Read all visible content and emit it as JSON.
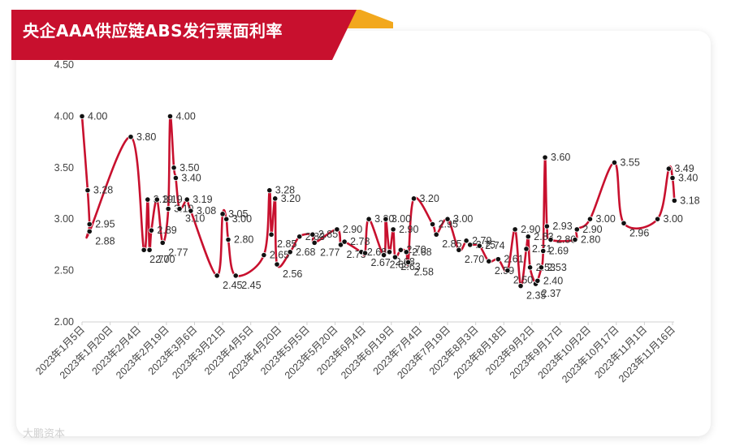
{
  "header": {
    "title": "央企AAA供应链ABS发行票面利率",
    "banner_color": "#c8102e",
    "accent_color": "#f2a81d"
  },
  "watermark": "大鹏资本",
  "chart_data": {
    "type": "line",
    "title": "央企AAA供应链ABS发行票面利率",
    "xlabel": "",
    "ylabel": "",
    "ylim": [
      2.0,
      4.5
    ],
    "yticks": [
      "2.00",
      "2.50",
      "3.00",
      "3.50",
      "4.00",
      "4.50"
    ],
    "xticks": [
      "2023年1月5日",
      "2023年1月20日",
      "2023年2月4日",
      "2023年2月19日",
      "2023年3月6日",
      "2023年3月21日",
      "2023年4月5日",
      "2023年4月20日",
      "2023年5月5日",
      "2023年5月20日",
      "2023年6月4日",
      "2023年6月19日",
      "2023年7月4日",
      "2023年7月19日",
      "2023年8月3日",
      "2023年8月18日",
      "2023年9月2日",
      "2023年9月17日",
      "2023年10月2日",
      "2023年10月17日",
      "2023年11月1日",
      "2023年11月16日"
    ],
    "line_color": "#c8102e",
    "marker_color": "#111111",
    "grid": false,
    "series": [
      {
        "points": [
          {
            "x": "2023-01-05",
            "y": 4.0,
            "label": "4.00"
          },
          {
            "x": "2023-01-08",
            "y": 3.28,
            "label": "3.28"
          },
          {
            "x": "2023-01-09",
            "y": 2.95,
            "label": "2.95"
          },
          {
            "x": "2023-01-09",
            "y": 2.88,
            "label": "2.88"
          },
          {
            "x": "2023-01-31",
            "y": 3.8,
            "label": "3.80"
          },
          {
            "x": "2023-02-07",
            "y": 2.7,
            "label": "2.70"
          },
          {
            "x": "2023-02-09",
            "y": 3.19,
            "label": "3.19"
          },
          {
            "x": "2023-02-10",
            "y": 2.7,
            "label": "2.70"
          },
          {
            "x": "2023-02-11",
            "y": 2.89,
            "label": "2.89"
          },
          {
            "x": "2023-02-14",
            "y": 3.19,
            "label": "3.19"
          },
          {
            "x": "2023-02-17",
            "y": 2.77,
            "label": "2.77"
          },
          {
            "x": "2023-02-20",
            "y": 3.1,
            "label": "3.10"
          },
          {
            "x": "2023-02-21",
            "y": 4.0,
            "label": "4.00"
          },
          {
            "x": "2023-02-23",
            "y": 3.5,
            "label": "3.50"
          },
          {
            "x": "2023-02-24",
            "y": 3.4,
            "label": "3.40"
          },
          {
            "x": "2023-02-26",
            "y": 3.1,
            "label": "3.10"
          },
          {
            "x": "2023-03-02",
            "y": 3.19,
            "label": "3.19"
          },
          {
            "x": "2023-03-04",
            "y": 3.08,
            "label": "3.08"
          },
          {
            "x": "2023-03-18",
            "y": 2.45,
            "label": "2.45"
          },
          {
            "x": "2023-03-21",
            "y": 3.05,
            "label": "3.05"
          },
          {
            "x": "2023-03-23",
            "y": 3.0,
            "label": "3.00"
          },
          {
            "x": "2023-03-24",
            "y": 2.8,
            "label": "2.80"
          },
          {
            "x": "2023-03-28",
            "y": 2.45,
            "label": "2.45"
          },
          {
            "x": "2023-04-12",
            "y": 2.65,
            "label": "2.65"
          },
          {
            "x": "2023-04-15",
            "y": 3.28,
            "label": "3.28"
          },
          {
            "x": "2023-04-16",
            "y": 2.85,
            "label": "2.85"
          },
          {
            "x": "2023-04-18",
            "y": 3.2,
            "label": "3.20"
          },
          {
            "x": "2023-04-19",
            "y": 2.56,
            "label": "2.56"
          },
          {
            "x": "2023-04-26",
            "y": 2.68,
            "label": "2.68"
          },
          {
            "x": "2023-05-01",
            "y": 2.83,
            "label": "2.83"
          },
          {
            "x": "2023-05-08",
            "y": 2.85,
            "label": "2.85"
          },
          {
            "x": "2023-05-09",
            "y": 2.77,
            "label": "2.77"
          },
          {
            "x": "2023-05-21",
            "y": 2.9,
            "label": "2.90"
          },
          {
            "x": "2023-05-23",
            "y": 2.75,
            "label": "2.75"
          },
          {
            "x": "2023-05-25",
            "y": 2.78,
            "label": "2.78"
          },
          {
            "x": "2023-06-03",
            "y": 2.68,
            "label": "2.68"
          },
          {
            "x": "2023-06-05",
            "y": 2.67,
            "label": "2.67"
          },
          {
            "x": "2023-06-07",
            "y": 3.0,
            "label": "3.00"
          },
          {
            "x": "2023-06-15",
            "y": 2.65,
            "label": "2.65"
          },
          {
            "x": "2023-06-16",
            "y": 3.0,
            "label": "3.00"
          },
          {
            "x": "2023-06-18",
            "y": 2.68,
            "label": "2.68"
          },
          {
            "x": "2023-06-20",
            "y": 2.9,
            "label": "2.90"
          },
          {
            "x": "2023-06-21",
            "y": 2.63,
            "label": "2.63"
          },
          {
            "x": "2023-06-24",
            "y": 2.7,
            "label": "2.70"
          },
          {
            "x": "2023-06-27",
            "y": 2.68,
            "label": "2.68"
          },
          {
            "x": "2023-06-28",
            "y": 2.58,
            "label": "2.58"
          },
          {
            "x": "2023-07-01",
            "y": 3.2,
            "label": "3.20"
          },
          {
            "x": "2023-07-11",
            "y": 2.95,
            "label": "2.95"
          },
          {
            "x": "2023-07-13",
            "y": 2.85,
            "label": "2.85"
          },
          {
            "x": "2023-07-19",
            "y": 3.0,
            "label": "3.00"
          },
          {
            "x": "2023-07-25",
            "y": 2.7,
            "label": "2.70"
          },
          {
            "x": "2023-07-29",
            "y": 2.79,
            "label": "2.79"
          },
          {
            "x": "2023-07-31",
            "y": 2.75,
            "label": "2.75"
          },
          {
            "x": "2023-08-05",
            "y": 2.74,
            "label": "2.74"
          },
          {
            "x": "2023-08-10",
            "y": 2.59,
            "label": "2.59"
          },
          {
            "x": "2023-08-15",
            "y": 2.61,
            "label": "2.61"
          },
          {
            "x": "2023-08-20",
            "y": 2.5,
            "label": "2.50"
          },
          {
            "x": "2023-08-24",
            "y": 2.9,
            "label": "2.90"
          },
          {
            "x": "2023-08-27",
            "y": 2.35,
            "label": "2.35"
          },
          {
            "x": "2023-08-30",
            "y": 2.71,
            "label": "2.71"
          },
          {
            "x": "2023-08-31",
            "y": 2.83,
            "label": "2.83"
          },
          {
            "x": "2023-09-01",
            "y": 2.53,
            "label": "2.53"
          },
          {
            "x": "2023-09-04",
            "y": 2.37,
            "label": "2.37"
          },
          {
            "x": "2023-09-05",
            "y": 2.4,
            "label": "2.40"
          },
          {
            "x": "2023-09-07",
            "y": 2.53,
            "label": "2.53"
          },
          {
            "x": "2023-09-08",
            "y": 2.69,
            "label": "2.69"
          },
          {
            "x": "2023-09-09",
            "y": 3.6,
            "label": "3.60"
          },
          {
            "x": "2023-09-10",
            "y": 2.93,
            "label": "2.93"
          },
          {
            "x": "2023-09-12",
            "y": 2.8,
            "label": "2.80"
          },
          {
            "x": "2023-09-25",
            "y": 2.8,
            "label": "2.80"
          },
          {
            "x": "2023-09-26",
            "y": 2.9,
            "label": "2.90"
          },
          {
            "x": "2023-10-03",
            "y": 3.0,
            "label": "3.00"
          },
          {
            "x": "2023-10-16",
            "y": 3.55,
            "label": "3.55"
          },
          {
            "x": "2023-10-21",
            "y": 2.96,
            "label": "2.96"
          },
          {
            "x": "2023-11-08",
            "y": 3.0,
            "label": "3.00"
          },
          {
            "x": "2023-11-14",
            "y": 3.49,
            "label": "3.49"
          },
          {
            "x": "2023-11-16",
            "y": 3.4,
            "label": "3.40"
          },
          {
            "x": "2023-11-17",
            "y": 3.18,
            "label": "3.18"
          }
        ]
      }
    ]
  }
}
